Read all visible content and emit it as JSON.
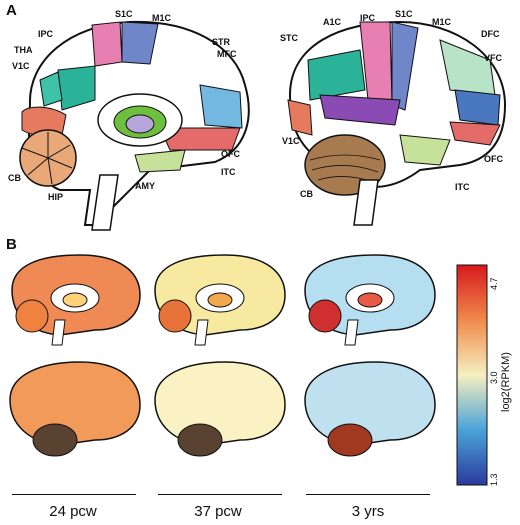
{
  "panels": {
    "a": "A",
    "b": "B"
  },
  "medial_labels": {
    "s1c": "S1C",
    "m1c": "M1C",
    "ipc": "IPC",
    "tha": "THA",
    "v1c": "V1C",
    "str": "STR",
    "mfc": "MFC",
    "cb": "CB",
    "hip": "HIP",
    "amy": "AMY",
    "ofc": "OFC",
    "itc": "ITC"
  },
  "lateral_labels": {
    "stc": "STC",
    "a1c": "A1C",
    "ipc": "IPC",
    "s1c": "S1C",
    "m1c": "M1C",
    "dfc": "DFC",
    "vfc": "VFC",
    "v1c": "V1C",
    "ofc": "OFC",
    "cb": "CB",
    "itc": "ITC"
  },
  "timepoints": [
    "24 pcw",
    "37 pcw",
    "3 yrs"
  ],
  "colorbar": {
    "max": "4.7",
    "mid": "3.0",
    "min": "1.3",
    "title": "log2(RPKM)"
  },
  "colors": {
    "s1c": "#e87fb3",
    "m1c": "#6f86c9",
    "ipc": "#2bb39a",
    "v1c": "#e57a5f",
    "cb": "#e8a877",
    "mfc": "#72b8e0",
    "ofc": "#e56b6b",
    "itc": "#c6e29a",
    "stc": "#8a4bb5",
    "dfc": "#b9e3c7",
    "vfc": "#4a78c0",
    "str": "#6fbf3f",
    "tha": "#b7a6db"
  }
}
